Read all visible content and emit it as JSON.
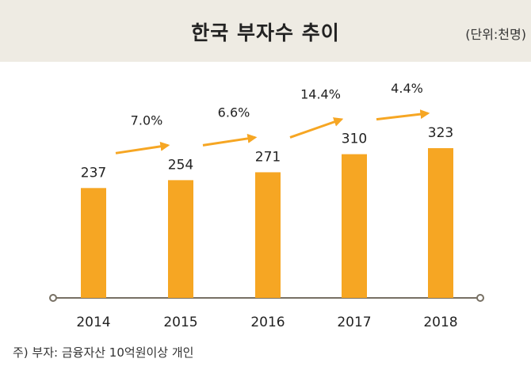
{
  "header": {
    "title": "한국 부자수 추이",
    "unit": "(단위:천명)"
  },
  "footnote": "주) 부자: 금융자산 10억원이상 개인",
  "colors": {
    "bar": "#f6a623",
    "arrow": "#f6a623",
    "axis": "#777064",
    "header_bg": "#eeebe3"
  },
  "chart_data": {
    "type": "bar",
    "title": "한국 부자수 추이",
    "xlabel": "",
    "ylabel": "",
    "unit": "(단위:천명)",
    "categories": [
      "2014",
      "2015",
      "2016",
      "2017",
      "2018"
    ],
    "values": [
      237,
      254,
      271,
      310,
      323
    ],
    "growth_labels": [
      "7.0%",
      "6.6%",
      "14.4%",
      "4.4%"
    ],
    "ylim": [
      0,
      323
    ],
    "grid": false,
    "legend": "none"
  }
}
